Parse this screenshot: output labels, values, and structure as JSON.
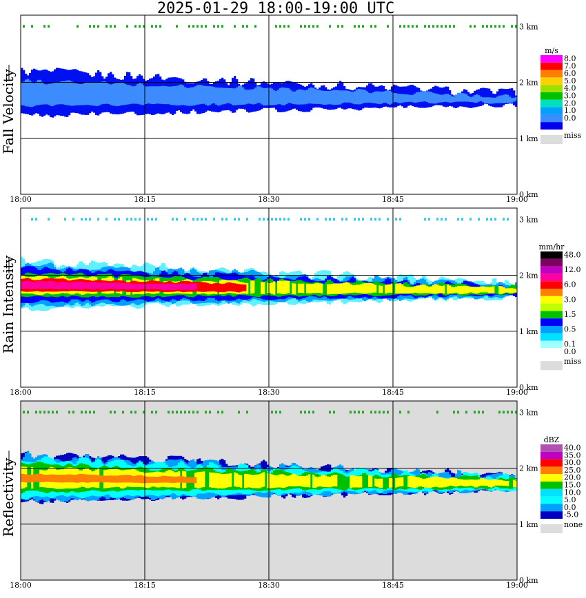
{
  "title": "2025-01-29   18:00-19:00 UTC",
  "time_ticks": [
    "18:00",
    "18:15",
    "18:30",
    "18:45",
    "19:00"
  ],
  "height_ticks": [
    "0 km",
    "1 km",
    "2 km",
    "3 km"
  ],
  "chart_data": [
    {
      "type": "heatmap",
      "ylabel": "Fall Velocity",
      "xlabel": "",
      "x_range": [
        "18:00",
        "19:00"
      ],
      "ylim_km": [
        0,
        3.2
      ],
      "grid": true,
      "legend_placement": "right",
      "legend_unit": "m/s",
      "legend": [
        {
          "label": "8.0",
          "color": "#ff00ff"
        },
        {
          "label": "7.0",
          "color": "#ff0000"
        },
        {
          "label": "6.0",
          "color": "#ff8000"
        },
        {
          "label": "5.0",
          "color": "#ffd000"
        },
        {
          "label": "4.0",
          "color": "#a0e000"
        },
        {
          "label": "3.0",
          "color": "#00c000"
        },
        {
          "label": "2.0",
          "color": "#00e0c0"
        },
        {
          "label": "1.0",
          "color": "#00a0ff"
        },
        {
          "label": "0.0",
          "color": "#3c8cff"
        },
        {
          "label": "",
          "color": "#0000ee"
        }
      ],
      "miss_label": "miss",
      "miss_color": "#dcdcdc",
      "background": "#ffffff",
      "layer": {
        "top_km_start": 2.2,
        "top_km_end": 1.8,
        "base_km_start": 1.4,
        "base_km_end": 1.6
      },
      "fields": [
        {
          "color": "#0010f0",
          "scale": 1.0
        },
        {
          "color": "#3c8cff",
          "scale": 0.55
        }
      ]
    },
    {
      "type": "heatmap",
      "ylabel": "Rain Intensity",
      "xlabel": "",
      "x_range": [
        "18:00",
        "19:00"
      ],
      "ylim_km": [
        0,
        3.2
      ],
      "grid": true,
      "legend_placement": "right",
      "legend_unit": "mm/hr",
      "legend": [
        {
          "label": "48.0",
          "color": "#000000"
        },
        {
          "label": "",
          "color": "#800060"
        },
        {
          "label": "12.0",
          "color": "#c000c0"
        },
        {
          "label": "",
          "color": "#ff00a0"
        },
        {
          "label": "6.0",
          "color": "#ff0000"
        },
        {
          "label": "",
          "color": "#ff8000"
        },
        {
          "label": "3.0",
          "color": "#ffff00"
        },
        {
          "label": "",
          "color": "#c0ff00"
        },
        {
          "label": "1.5",
          "color": "#00c000"
        },
        {
          "label": "",
          "color": "#0000ff"
        },
        {
          "label": "0.5",
          "color": "#00a0ff"
        },
        {
          "label": "",
          "color": "#00e0ff"
        },
        {
          "label": "0.1",
          "color": "#a0ffff"
        },
        {
          "label": "0.0",
          "color": "#ffffff"
        }
      ],
      "miss_label": "miss",
      "miss_color": "#dcdcdc",
      "background": "#ffffff",
      "layer": {
        "top_km_start": 2.25,
        "top_km_end": 1.85,
        "base_km_start": 1.4,
        "base_km_end": 1.6
      },
      "fields": [
        {
          "color": "#60f0ff",
          "scale": 1.0
        },
        {
          "color": "#00a0ff",
          "scale": 0.85
        },
        {
          "color": "#0000ff",
          "scale": 0.7
        },
        {
          "color": "#00c000",
          "scale": 0.5
        },
        {
          "color": "#ffff00",
          "scale": 0.38
        },
        {
          "color": "#ff0000",
          "scale": 0.26,
          "xmax": 0.45
        },
        {
          "color": "#ff00a0",
          "scale": 0.16,
          "xmax": 0.35
        }
      ]
    },
    {
      "type": "heatmap",
      "ylabel": "Reflectivity",
      "xlabel": "",
      "x_range": [
        "18:00",
        "19:00"
      ],
      "ylim_km": [
        0,
        3.2
      ],
      "grid": true,
      "legend_placement": "right",
      "legend_unit": "dBZ",
      "legend": [
        {
          "label": "40.0",
          "color": "#b050b0"
        },
        {
          "label": "35.0",
          "color": "#c000c0"
        },
        {
          "label": "30.0",
          "color": "#ff0000"
        },
        {
          "label": "25.0",
          "color": "#ff8000"
        },
        {
          "label": "20.0",
          "color": "#ffff00"
        },
        {
          "label": "15.0",
          "color": "#00c000"
        },
        {
          "label": "10.0",
          "color": "#00e0ff"
        },
        {
          "label": "5.0",
          "color": "#00ffff"
        },
        {
          "label": "0.0",
          "color": "#00a0ff"
        },
        {
          "label": "-5.0",
          "color": "#0000c0"
        }
      ],
      "miss_label": "none",
      "miss_color": "#dcdcdc",
      "background": "#dcdcdc",
      "layer": {
        "top_km_start": 2.25,
        "top_km_end": 1.85,
        "base_km_start": 1.4,
        "base_km_end": 1.6
      },
      "fields": [
        {
          "color": "#0000c0",
          "scale": 1.02
        },
        {
          "color": "#00a0ff",
          "scale": 0.95
        },
        {
          "color": "#00ffff",
          "scale": 0.82
        },
        {
          "color": "#00c000",
          "scale": 0.6
        },
        {
          "color": "#ffff00",
          "scale": 0.42
        },
        {
          "color": "#ff8000",
          "scale": 0.18,
          "xmax": 0.35
        }
      ]
    }
  ],
  "surface_noise_colors": [
    "#00c000",
    "#00e0ff",
    "#00c000"
  ]
}
